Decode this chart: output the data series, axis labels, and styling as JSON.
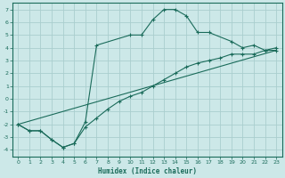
{
  "xlabel": "Humidex (Indice chaleur)",
  "bg_color": "#cce8e8",
  "grid_color": "#aacece",
  "line_color": "#1a6b5a",
  "xlim": [
    -0.5,
    23.5
  ],
  "ylim": [
    -4.5,
    7.5
  ],
  "xticks": [
    0,
    1,
    2,
    3,
    4,
    5,
    6,
    7,
    8,
    9,
    10,
    11,
    12,
    13,
    14,
    15,
    16,
    17,
    18,
    19,
    20,
    21,
    22,
    23
  ],
  "yticks": [
    -4,
    -3,
    -2,
    -1,
    0,
    1,
    2,
    3,
    4,
    5,
    6,
    7
  ],
  "curve1_x": [
    0,
    1,
    2,
    3,
    4,
    5,
    6,
    7,
    10,
    11,
    12,
    13,
    14,
    15,
    16,
    17,
    19,
    20,
    21,
    22,
    23
  ],
  "curve1_y": [
    -2.0,
    -2.5,
    -2.5,
    -3.2,
    -3.8,
    -3.5,
    -1.8,
    4.2,
    5.0,
    5.0,
    6.2,
    7.0,
    7.0,
    6.5,
    5.2,
    5.2,
    4.5,
    4.0,
    4.2,
    3.8,
    4.0
  ],
  "curve2_x": [
    0,
    1,
    2,
    3,
    4,
    5,
    6,
    7,
    8,
    9,
    10,
    11,
    12,
    13,
    14,
    15,
    16,
    17,
    18,
    19,
    20,
    21,
    22,
    23
  ],
  "curve2_y": [
    -2.0,
    -2.5,
    -2.5,
    -3.2,
    -3.8,
    -3.5,
    -2.2,
    -1.5,
    -0.8,
    -0.2,
    0.2,
    0.5,
    1.0,
    1.5,
    2.0,
    2.5,
    2.8,
    3.0,
    3.2,
    3.5,
    3.5,
    3.5,
    3.8,
    3.8
  ],
  "curve3_x": [
    0,
    23
  ],
  "curve3_y": [
    -2.0,
    3.8
  ]
}
